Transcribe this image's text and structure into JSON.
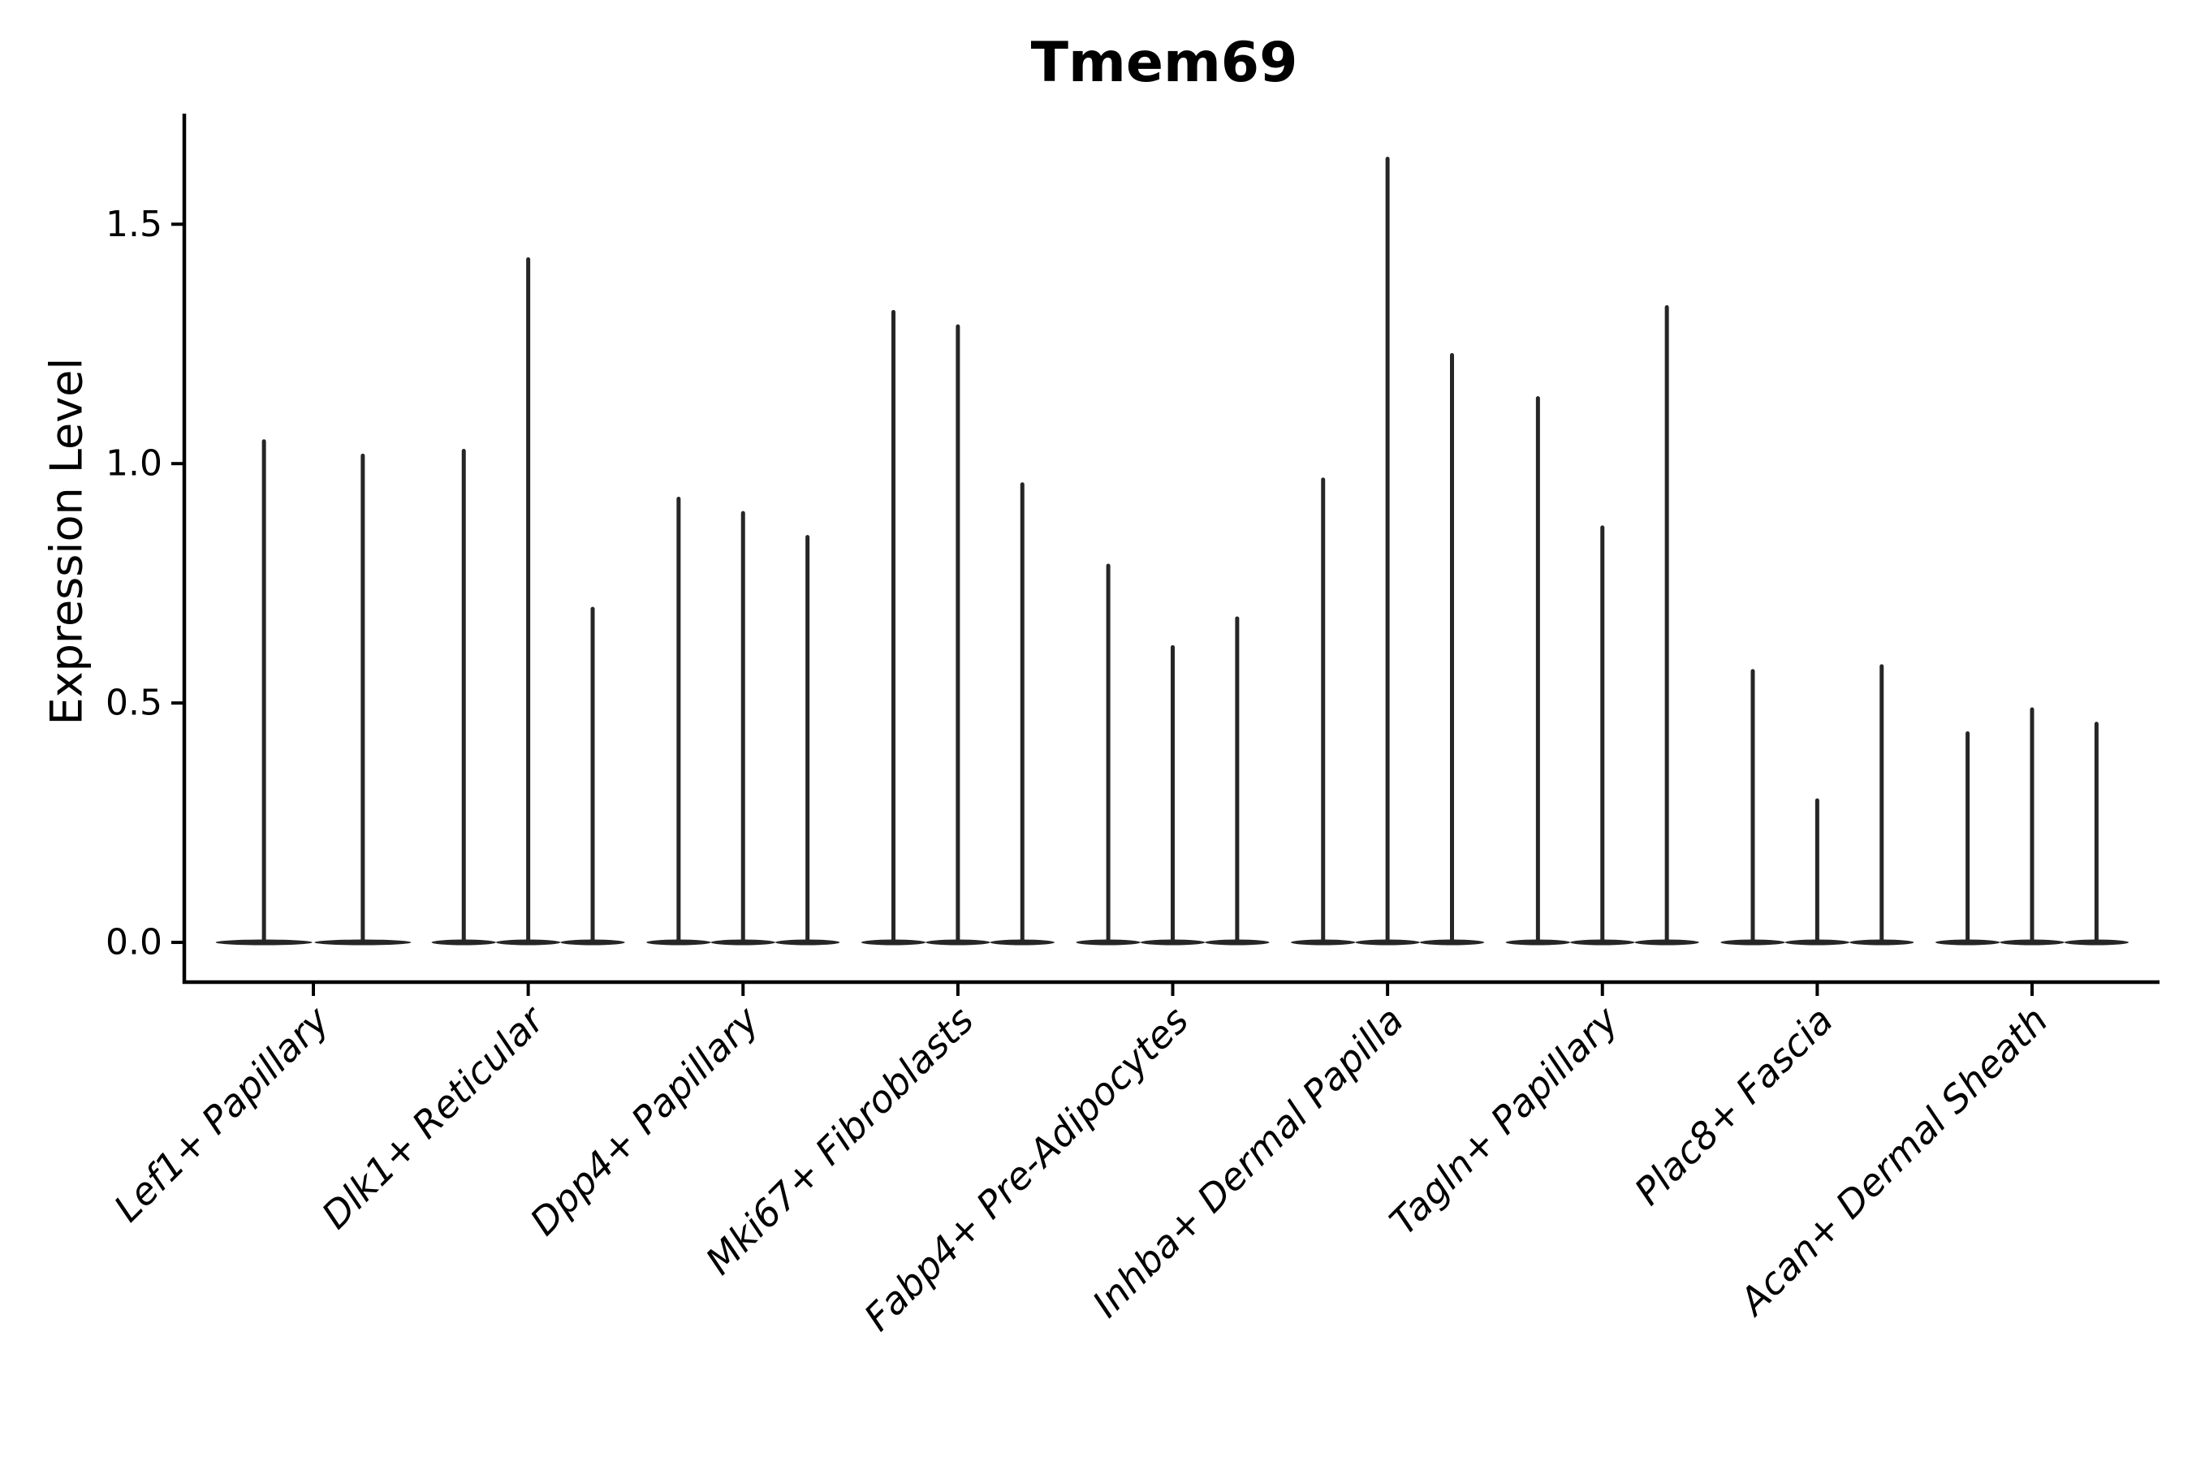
{
  "chart_data": {
    "type": "violin",
    "title": "Tmem69",
    "ylabel": "Expression Level",
    "xlabel": "",
    "background_color": "#ffffff",
    "axis_color": "#000000",
    "violin_color": "#262626",
    "grid": false,
    "legend_position": "none",
    "ylim": [
      -0.083,
      1.731
    ],
    "yticks": [
      {
        "value": 0.0,
        "label": "0.0"
      },
      {
        "value": 0.5,
        "label": "0.5"
      },
      {
        "value": 1.0,
        "label": "1.0"
      },
      {
        "value": 1.5,
        "label": "1.5"
      }
    ],
    "categories": [
      "Lef1+ Papillary",
      "Dlk1+ Reticular",
      "Dpp4+ Papillary",
      "Mki67+ Fibroblasts",
      "Fabp4+ Pre-Adipocytes",
      "Inhba+ Dermal Papilla",
      "Tagln+ Papillary",
      "Plac8+ Fascia",
      "Acan+ Dermal Sheath"
    ],
    "groups": [
      {
        "category": "Lef1+ Papillary",
        "violins": [
          {
            "offset": -0.23,
            "peak": 1.05
          },
          {
            "offset": 0.23,
            "peak": 1.02
          }
        ]
      },
      {
        "category": "Dlk1+ Reticular",
        "violins": [
          {
            "offset": -0.3,
            "peak": 1.03
          },
          {
            "offset": 0,
            "peak": 1.43
          },
          {
            "offset": 0.3,
            "peak": 0.7
          }
        ]
      },
      {
        "category": "Dpp4+ Papillary",
        "violins": [
          {
            "offset": -0.3,
            "peak": 0.93
          },
          {
            "offset": 0,
            "peak": 0.9
          },
          {
            "offset": 0.3,
            "peak": 0.85
          }
        ]
      },
      {
        "category": "Mki67+ Fibroblasts",
        "violins": [
          {
            "offset": -0.3,
            "peak": 1.32
          },
          {
            "offset": 0,
            "peak": 1.29
          },
          {
            "offset": 0.3,
            "peak": 0.96
          }
        ]
      },
      {
        "category": "Fabp4+ Pre-Adipocytes",
        "violins": [
          {
            "offset": -0.3,
            "peak": 0.79
          },
          {
            "offset": 0,
            "peak": 0.62
          },
          {
            "offset": 0.3,
            "peak": 0.68
          }
        ]
      },
      {
        "category": "Inhba+ Dermal Papilla",
        "violins": [
          {
            "offset": -0.3,
            "peak": 0.97
          },
          {
            "offset": 0,
            "peak": 1.64
          },
          {
            "offset": 0.3,
            "peak": 1.23
          }
        ]
      },
      {
        "category": "Tagln+ Papillary",
        "violins": [
          {
            "offset": -0.3,
            "peak": 1.14
          },
          {
            "offset": 0,
            "peak": 0.87
          },
          {
            "offset": 0.3,
            "peak": 1.33
          }
        ]
      },
      {
        "category": "Plac8+ Fascia",
        "violins": [
          {
            "offset": -0.3,
            "peak": 0.57
          },
          {
            "offset": 0,
            "peak": 0.3
          },
          {
            "offset": 0.3,
            "peak": 0.58
          }
        ]
      },
      {
        "category": "Acan+ Dermal Sheath",
        "violins": [
          {
            "offset": -0.3,
            "peak": 0.44
          },
          {
            "offset": 0,
            "peak": 0.49
          },
          {
            "offset": 0.3,
            "peak": 0.46
          }
        ]
      }
    ]
  }
}
